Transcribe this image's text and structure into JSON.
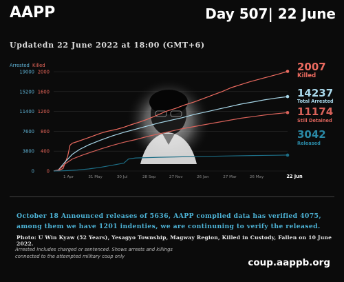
{
  "header": {
    "org": "AAPP",
    "day": "Day 507| 22 June"
  },
  "updated": "Updatedn 22 June 2022 at 18:00 (GMT+6)",
  "chart_data": {
    "type": "line",
    "legend": [
      "Arrested",
      "Killed"
    ],
    "y_left": {
      "ticks": [
        0,
        3800,
        7600,
        11400,
        15200,
        19000
      ],
      "range": [
        0,
        19000
      ],
      "color": "#5fb3d6"
    },
    "y_right": {
      "ticks": [
        0,
        400,
        800,
        1200,
        1600,
        2000
      ],
      "range": [
        0,
        2000
      ],
      "color": "#e8665a"
    },
    "x_ticks": [
      "1 Apr",
      "31 May",
      "30 Jul",
      "28 Sep",
      "27 Nov",
      "26 Jan",
      "27 Mar",
      "26 May",
      "22 Jun"
    ],
    "series": [
      {
        "name": "Killed",
        "axis": "right",
        "color": "#ec6b60",
        "points": [
          [
            0,
            0
          ],
          [
            0.02,
            5
          ],
          [
            0.04,
            50
          ],
          [
            0.06,
            300
          ],
          [
            0.07,
            520
          ],
          [
            0.08,
            560
          ],
          [
            0.1,
            590
          ],
          [
            0.13,
            640
          ],
          [
            0.16,
            690
          ],
          [
            0.2,
            760
          ],
          [
            0.23,
            800
          ],
          [
            0.27,
            840
          ],
          [
            0.3,
            880
          ],
          [
            0.33,
            930
          ],
          [
            0.37,
            990
          ],
          [
            0.4,
            1040
          ],
          [
            0.44,
            1120
          ],
          [
            0.48,
            1200
          ],
          [
            0.52,
            1260
          ],
          [
            0.56,
            1330
          ],
          [
            0.6,
            1390
          ],
          [
            0.64,
            1460
          ],
          [
            0.68,
            1530
          ],
          [
            0.72,
            1600
          ],
          [
            0.76,
            1680
          ],
          [
            0.8,
            1740
          ],
          [
            0.84,
            1800
          ],
          [
            0.88,
            1850
          ],
          [
            0.92,
            1900
          ],
          [
            0.96,
            1950
          ],
          [
            1,
            2007
          ]
        ]
      },
      {
        "name": "Total Arrested",
        "axis": "left",
        "color": "#a9d8ea",
        "points": [
          [
            0,
            0
          ],
          [
            0.02,
            200
          ],
          [
            0.05,
            1800
          ],
          [
            0.08,
            3200
          ],
          [
            0.11,
            4100
          ],
          [
            0.15,
            5000
          ],
          [
            0.2,
            5900
          ],
          [
            0.25,
            6700
          ],
          [
            0.3,
            7400
          ],
          [
            0.35,
            8000
          ],
          [
            0.4,
            8600
          ],
          [
            0.45,
            9200
          ],
          [
            0.5,
            9700
          ],
          [
            0.55,
            10200
          ],
          [
            0.6,
            10800
          ],
          [
            0.65,
            11300
          ],
          [
            0.7,
            11800
          ],
          [
            0.75,
            12300
          ],
          [
            0.8,
            12800
          ],
          [
            0.85,
            13200
          ],
          [
            0.9,
            13600
          ],
          [
            0.95,
            13950
          ],
          [
            1,
            14237
          ]
        ]
      },
      {
        "name": "Still Detained",
        "axis": "left",
        "color": "#d9625a",
        "points": [
          [
            0,
            0
          ],
          [
            0.02,
            150
          ],
          [
            0.05,
            1400
          ],
          [
            0.08,
            2300
          ],
          [
            0.12,
            3000
          ],
          [
            0.16,
            3600
          ],
          [
            0.2,
            4200
          ],
          [
            0.25,
            4900
          ],
          [
            0.3,
            5500
          ],
          [
            0.35,
            6000
          ],
          [
            0.4,
            6600
          ],
          [
            0.45,
            7100
          ],
          [
            0.5,
            7600
          ],
          [
            0.55,
            8100
          ],
          [
            0.6,
            8500
          ],
          [
            0.65,
            8900
          ],
          [
            0.7,
            9300
          ],
          [
            0.75,
            9700
          ],
          [
            0.8,
            10100
          ],
          [
            0.85,
            10400
          ],
          [
            0.9,
            10700
          ],
          [
            0.95,
            10950
          ],
          [
            1,
            11174
          ]
        ]
      },
      {
        "name": "Released",
        "axis": "left",
        "color": "#1d6e86",
        "points": [
          [
            0,
            0
          ],
          [
            0.03,
            20
          ],
          [
            0.06,
            80
          ],
          [
            0.1,
            180
          ],
          [
            0.15,
            400
          ],
          [
            0.2,
            700
          ],
          [
            0.25,
            1100
          ],
          [
            0.3,
            1500
          ],
          [
            0.32,
            2300
          ],
          [
            0.35,
            2500
          ],
          [
            0.45,
            2620
          ],
          [
            0.55,
            2720
          ],
          [
            0.65,
            2800
          ],
          [
            0.75,
            2880
          ],
          [
            0.85,
            2950
          ],
          [
            0.95,
            3010
          ],
          [
            1,
            3042
          ]
        ]
      }
    ],
    "end_labels": [
      {
        "value": "2007",
        "label": "Killed",
        "color": "#ec6b60"
      },
      {
        "value": "14237",
        "label": "Total Arrested",
        "color": "#a9d8ea"
      },
      {
        "value": "11174",
        "label": "Still Detained",
        "color": "#d9625a"
      },
      {
        "value": "3042",
        "label": "Released",
        "color": "#2a89a6"
      }
    ]
  },
  "note": "October 18 Announced releases of 5636, AAPP complied data has verified 4075, among them we have 1201 indenties, we are continuning to verify the released.",
  "photo_caption": "Photo:  U Win Kyaw (52 Years), Yesagyo Township, Magway Region, Killed in Custody, Fallen on 10 June 2022.",
  "footnote_1": "Arrested includes charged or sentenced. Shows arrests and killings",
  "footnote_2": "connected to the attempted military coup only",
  "url": "coup.aappb.org"
}
